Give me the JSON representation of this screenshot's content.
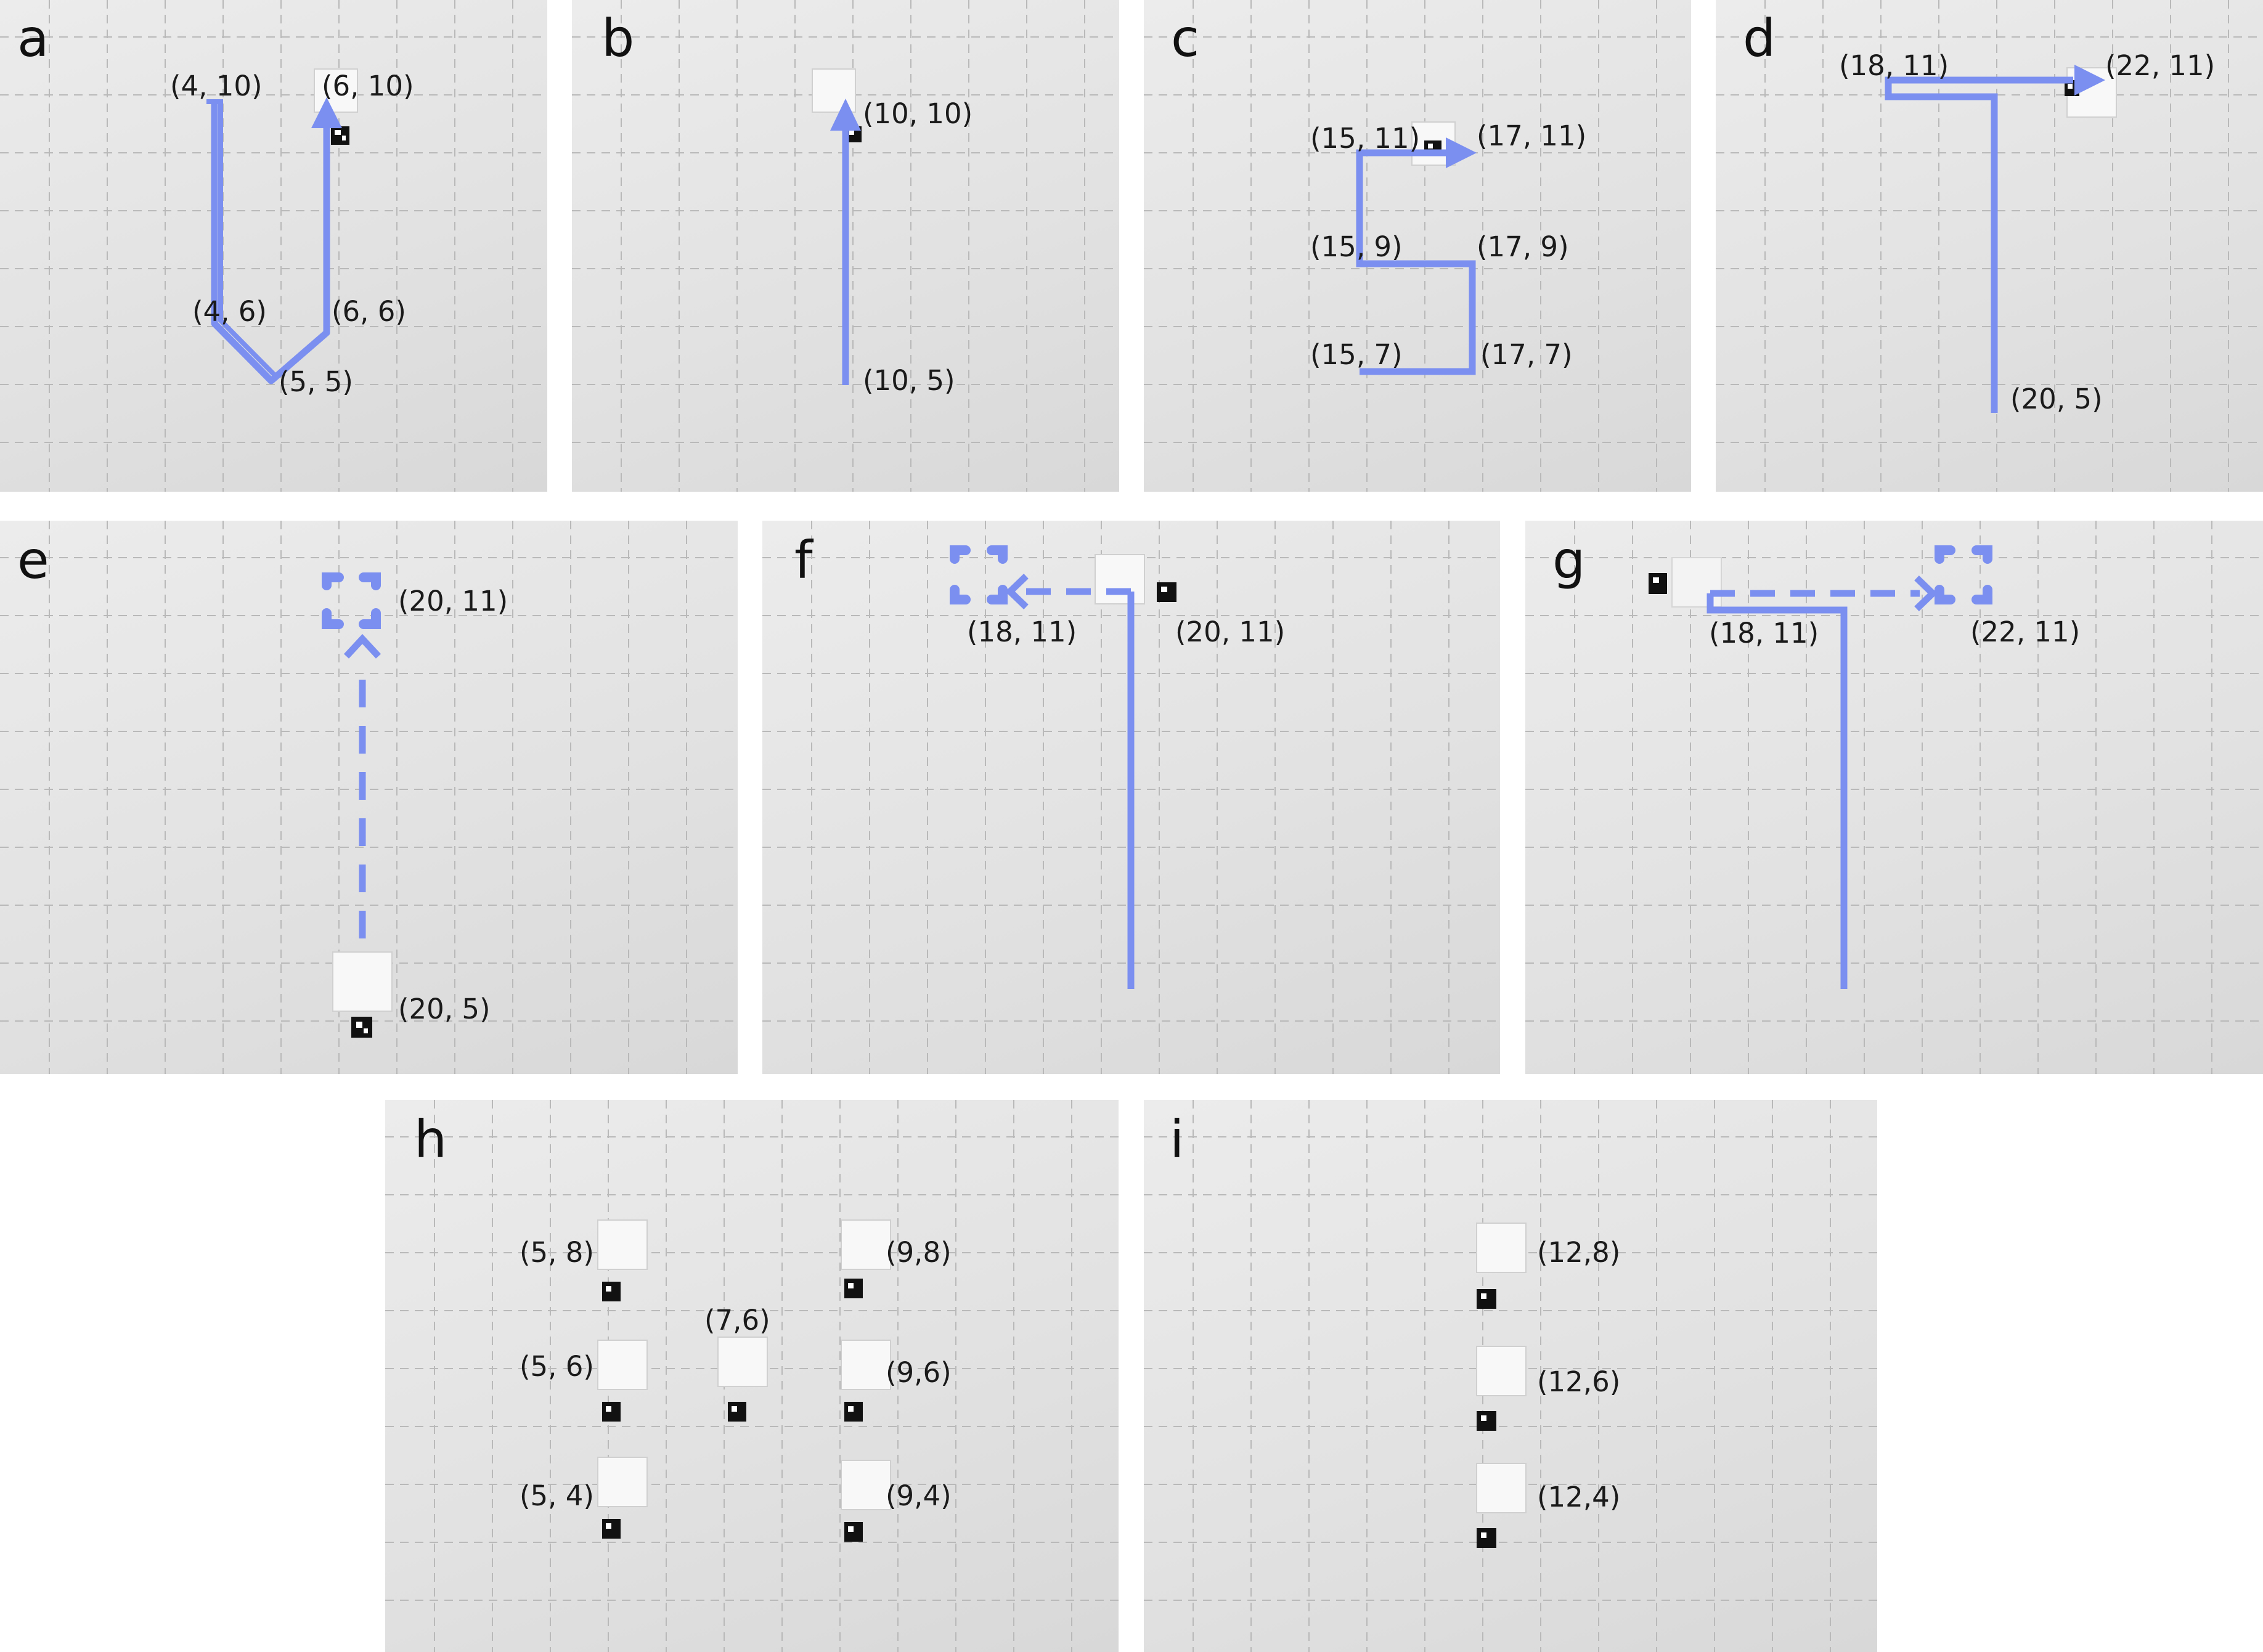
{
  "colors": {
    "path": "#7b8ff0",
    "grid": "#b9b9b9",
    "panel_bg": "#e6e6e6",
    "marker": "#111111"
  },
  "panels": [
    {
      "letter": "a",
      "labels": [
        "(4, 10)",
        "(6, 10)",
        "(4, 6)",
        "(6, 6)",
        "(5, 5)"
      ]
    },
    {
      "letter": "b",
      "labels": [
        "(10, 10)",
        "(10, 5)"
      ]
    },
    {
      "letter": "c",
      "labels": [
        "(15, 11)",
        "(17, 11)",
        "(15, 9)",
        "(17, 9)",
        "(15, 7)",
        "(17, 7)"
      ]
    },
    {
      "letter": "d",
      "labels": [
        "(18, 11)",
        "(22, 11)",
        "(20, 5)"
      ]
    },
    {
      "letter": "e",
      "labels": [
        "(20, 11)",
        "(20, 5)"
      ]
    },
    {
      "letter": "f",
      "labels": [
        "(18, 11)",
        "(20, 11)"
      ]
    },
    {
      "letter": "g",
      "labels": [
        "(18, 11)",
        "(22, 11)"
      ]
    },
    {
      "letter": "h",
      "labels": [
        "(5, 8)",
        "(9,8)",
        "(7,6)",
        "(5, 6)",
        "(9,6)",
        "(5, 4)",
        "(9,4)"
      ]
    },
    {
      "letter": "i",
      "labels": [
        "(12,8)",
        "(12,6)",
        "(12,4)"
      ]
    }
  ]
}
